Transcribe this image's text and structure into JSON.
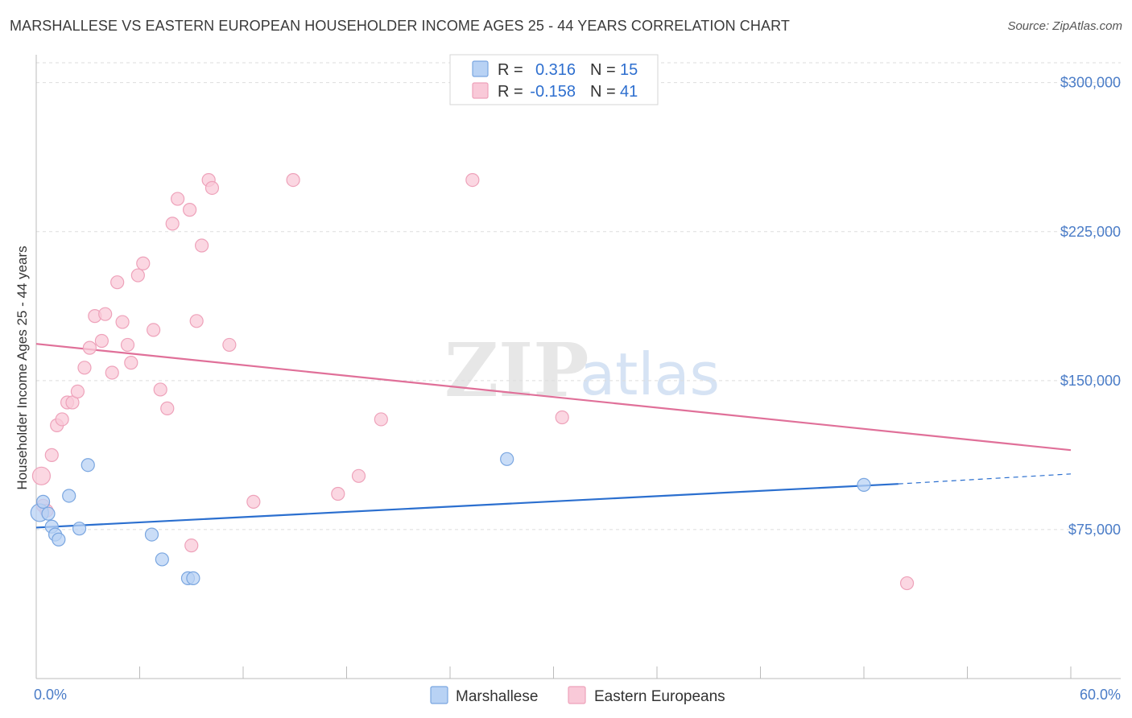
{
  "title": "MARSHALLESE VS EASTERN EUROPEAN HOUSEHOLDER INCOME AGES 25 - 44 YEARS CORRELATION CHART",
  "source": "Source: ZipAtlas.com",
  "watermark": {
    "zip": "ZIP",
    "atlas": "atlas"
  },
  "colors": {
    "marshallese_fill": "#b8d2f4",
    "marshallese_stroke": "#7aa6e0",
    "marshallese_line": "#2b6fcf",
    "eastern_fill": "#f9c9d8",
    "eastern_stroke": "#eea2ba",
    "eastern_line": "#e07099",
    "grid": "#dddddd",
    "axis_text": "#4a7cc7"
  },
  "legend": {
    "rows": [
      {
        "r_label": "R =",
        "r_value": "0.316",
        "n_label": "N =",
        "n_value": "15"
      },
      {
        "r_label": "R =",
        "r_value": "-0.158",
        "n_label": "N =",
        "n_value": "41"
      }
    ]
  },
  "chart_data": {
    "type": "scatter",
    "title": "MARSHALLESE VS EASTERN EUROPEAN HOUSEHOLDER INCOME AGES 25 - 44 YEARS CORRELATION CHART",
    "xlabel": "",
    "ylabel": "Householder Income Ages 25 - 44 years",
    "xlim": [
      0,
      60
    ],
    "ylim": [
      0,
      310000
    ],
    "x_tick_labels": [
      "0.0%",
      "60.0%"
    ],
    "y_ticks": [
      75000,
      150000,
      225000,
      300000
    ],
    "y_tick_labels": [
      "$75,000",
      "$150,000",
      "$225,000",
      "$300,000"
    ],
    "grid": true,
    "legend_position": "top-center",
    "series": [
      {
        "name": "Marshallese",
        "points": [
          [
            0.2,
            83500
          ],
          [
            0.4,
            89000
          ],
          [
            0.7,
            83000
          ],
          [
            0.9,
            76500
          ],
          [
            1.1,
            72500
          ],
          [
            1.3,
            70000
          ],
          [
            1.9,
            92000
          ],
          [
            2.5,
            75500
          ],
          [
            3.0,
            107500
          ],
          [
            6.7,
            72500
          ],
          [
            7.3,
            60000
          ],
          [
            8.8,
            50500
          ],
          [
            9.1,
            50500
          ],
          [
            27.3,
            110500
          ],
          [
            48.0,
            97500
          ]
        ],
        "trend": {
          "x0": 0,
          "y0": 76000,
          "x1": 50,
          "y1": 98000,
          "dashed_to_x": 60,
          "dashed_to_y": 103000
        }
      },
      {
        "name": "Eastern Europeans",
        "points": [
          [
            0.3,
            102000
          ],
          [
            0.4,
            87000
          ],
          [
            0.6,
            84500
          ],
          [
            0.9,
            112500
          ],
          [
            1.2,
            127500
          ],
          [
            1.5,
            130500
          ],
          [
            1.8,
            139000
          ],
          [
            2.1,
            139000
          ],
          [
            2.4,
            144500
          ],
          [
            2.8,
            156500
          ],
          [
            3.1,
            166500
          ],
          [
            3.4,
            182500
          ],
          [
            3.8,
            170000
          ],
          [
            4.0,
            183500
          ],
          [
            4.4,
            154000
          ],
          [
            4.7,
            199500
          ],
          [
            5.0,
            179500
          ],
          [
            5.3,
            168000
          ],
          [
            5.5,
            159000
          ],
          [
            5.9,
            203000
          ],
          [
            6.2,
            209000
          ],
          [
            6.8,
            175500
          ],
          [
            7.2,
            145500
          ],
          [
            7.6,
            136000
          ],
          [
            7.9,
            229000
          ],
          [
            8.2,
            241500
          ],
          [
            8.9,
            236000
          ],
          [
            9.0,
            67000
          ],
          [
            9.3,
            180000
          ],
          [
            9.6,
            218000
          ],
          [
            10.0,
            251000
          ],
          [
            10.2,
            247000
          ],
          [
            11.2,
            168000
          ],
          [
            12.6,
            89000
          ],
          [
            14.9,
            251000
          ],
          [
            17.5,
            93000
          ],
          [
            18.7,
            102000
          ],
          [
            20.0,
            130500
          ],
          [
            25.3,
            251000
          ],
          [
            30.5,
            131500
          ],
          [
            50.5,
            48000
          ]
        ],
        "trend": {
          "x0": 0,
          "y0": 168500,
          "x1": 60,
          "y1": 115000
        }
      }
    ]
  }
}
